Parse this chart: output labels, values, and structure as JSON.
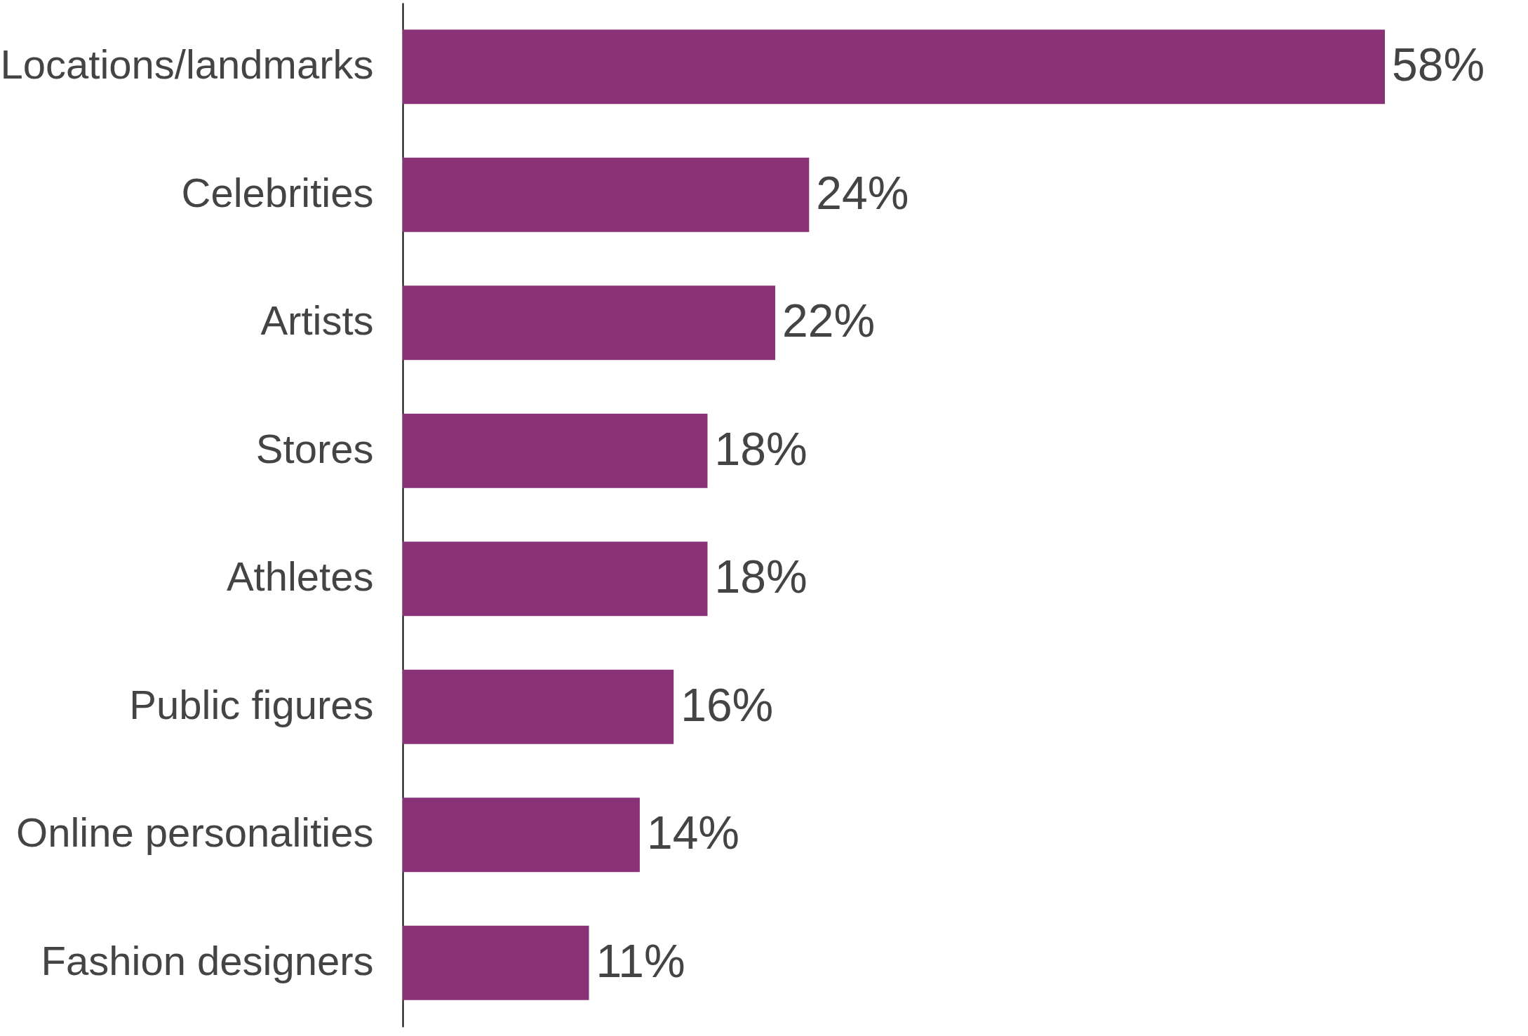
{
  "chart_data": {
    "type": "bar",
    "orientation": "horizontal",
    "categories": [
      "Locations/landmarks",
      "Celebrities",
      "Artists",
      "Stores",
      "Athletes",
      "Public figures",
      "Online personalities",
      "Fashion designers"
    ],
    "values": [
      58,
      24,
      22,
      18,
      18,
      16,
      14,
      11
    ],
    "value_labels": [
      "58%",
      "24%",
      "22%",
      "18%",
      "18%",
      "16%",
      "14%",
      "11%"
    ],
    "color": "#8a3277"
  }
}
